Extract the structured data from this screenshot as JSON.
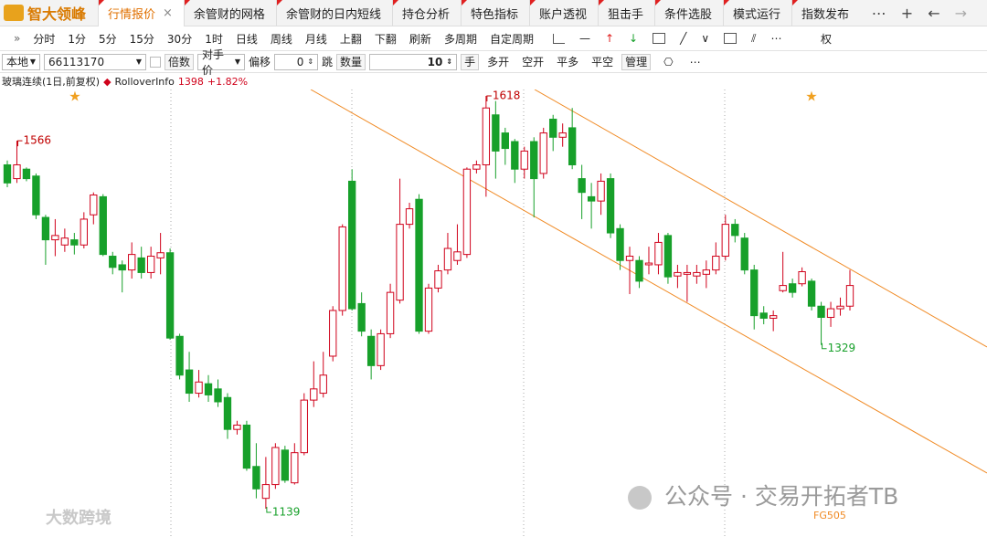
{
  "app": {
    "logo": "智大领峰"
  },
  "tabs": [
    "行情报价",
    "余管财的网格",
    "余管财的日内短线",
    "持仓分析",
    "特色指标",
    "账户透视",
    "狙击手",
    "条件选股",
    "模式运行",
    "指数发布"
  ],
  "periods": [
    "分时",
    "1分",
    "5分",
    "15分",
    "30分",
    "1时",
    "日线",
    "周线",
    "月线",
    "上翻",
    "下翻",
    "刷新",
    "多周期",
    "自定周期"
  ],
  "right_tool": "权",
  "order_bar": {
    "account": "本地",
    "code": "66113170",
    "multiple": "倍数",
    "price_type": "对手价",
    "offset_label": "偏移",
    "offset": 0,
    "tick_label": "跳",
    "qty_label": "数量",
    "qty": 10,
    "unit": "手",
    "actions": [
      "多开",
      "空开",
      "平多",
      "平空",
      "管理"
    ]
  },
  "chart_data": {
    "type": "candlestick",
    "title": "玻璃连续(1日,前复权)",
    "indicator": "RolloverInfo",
    "last_price": 1398,
    "change": "+1.82%",
    "up_color": "#d0021b",
    "down_color": "#17a02a",
    "open": [
      1538,
      1522,
      1533,
      1525,
      1477,
      1451,
      1445,
      1451,
      1445,
      1480,
      1501,
      1432,
      1422,
      1416,
      1430,
      1413,
      1430,
      1436,
      1339,
      1300,
      1273,
      1284,
      1278,
      1268,
      1231,
      1236,
      1188,
      1151,
      1167,
      1207,
      1169,
      1204,
      1265,
      1273,
      1316,
      1369,
      1519,
      1377,
      1339,
      1305,
      1342,
      1381,
      1469,
      1498,
      1345,
      1395,
      1416,
      1427,
      1434,
      1533,
      1538,
      1596,
      1575,
      1565,
      1533,
      1565,
      1528,
      1591,
      1570,
      1581,
      1522,
      1501,
      1496,
      1522,
      1464,
      1427,
      1427,
      1422,
      1422,
      1456,
      1409,
      1411,
      1409,
      1411,
      1416,
      1432,
      1469,
      1453,
      1416,
      1366,
      1360,
      1392,
      1400,
      1400,
      1403,
      1374,
      1361,
      1371,
      1374
    ],
    "high": [
      1543,
      1566,
      1535,
      1528,
      1480,
      1475,
      1464,
      1459,
      1483,
      1506,
      1504,
      1437,
      1427,
      1448,
      1443,
      1443,
      1459,
      1441,
      1342,
      1321,
      1300,
      1294,
      1289,
      1273,
      1241,
      1241,
      1215,
      1199,
      1215,
      1212,
      1215,
      1273,
      1310,
      1321,
      1374,
      1469,
      1533,
      1390,
      1347,
      1347,
      1400,
      1522,
      1494,
      1504,
      1400,
      1422,
      1459,
      1469,
      1535,
      1543,
      1618,
      1612,
      1581,
      1568,
      1559,
      1570,
      1581,
      1596,
      1586,
      1604,
      1538,
      1517,
      1528,
      1528,
      1469,
      1443,
      1432,
      1443,
      1459,
      1459,
      1422,
      1422,
      1422,
      1427,
      1448,
      1480,
      1475,
      1459,
      1422,
      1374,
      1369,
      1437,
      1406,
      1419,
      1406,
      1379,
      1379,
      1384,
      1416
    ],
    "low": [
      1512,
      1517,
      1519,
      1475,
      1422,
      1432,
      1437,
      1434,
      1441,
      1469,
      1432,
      1411,
      1390,
      1406,
      1406,
      1406,
      1411,
      1335,
      1289,
      1263,
      1268,
      1263,
      1257,
      1220,
      1225,
      1183,
      1151,
      1139,
      1162,
      1169,
      1167,
      1201,
      1257,
      1268,
      1310,
      1363,
      1369,
      1339,
      1289,
      1300,
      1337,
      1377,
      1464,
      1342,
      1342,
      1390,
      1411,
      1422,
      1430,
      1528,
      1501,
      1522,
      1538,
      1517,
      1522,
      1477,
      1522,
      1554,
      1559,
      1533,
      1475,
      1464,
      1480,
      1453,
      1416,
      1388,
      1395,
      1411,
      1411,
      1400,
      1395,
      1379,
      1400,
      1395,
      1411,
      1427,
      1448,
      1411,
      1347,
      1353,
      1345,
      1390,
      1384,
      1397,
      1369,
      1329,
      1350,
      1363,
      1369
    ],
    "close": [
      1517,
      1538,
      1522,
      1480,
      1451,
      1456,
      1453,
      1445,
      1475,
      1503,
      1434,
      1419,
      1416,
      1434,
      1413,
      1432,
      1436,
      1337,
      1294,
      1273,
      1286,
      1271,
      1263,
      1231,
      1236,
      1186,
      1162,
      1167,
      1210,
      1172,
      1204,
      1265,
      1278,
      1294,
      1369,
      1466,
      1371,
      1345,
      1305,
      1342,
      1390,
      1469,
      1487,
      1345,
      1395,
      1415,
      1441,
      1437,
      1533,
      1538,
      1604,
      1554,
      1557,
      1533,
      1554,
      1522,
      1575,
      1570,
      1575,
      1538,
      1506,
      1496,
      1519,
      1459,
      1427,
      1432,
      1403,
      1424,
      1448,
      1408,
      1413,
      1413,
      1413,
      1416,
      1432,
      1469,
      1456,
      1416,
      1363,
      1360,
      1363,
      1398,
      1390,
      1414,
      1374,
      1361,
      1371,
      1374,
      1398
    ],
    "annotations": [
      1566,
      1618,
      1139,
      1329
    ],
    "contract_label": "FG505"
  },
  "watermark": {
    "text": "公众号 · 交易开拓者TB",
    "corner": "大数跨境"
  }
}
